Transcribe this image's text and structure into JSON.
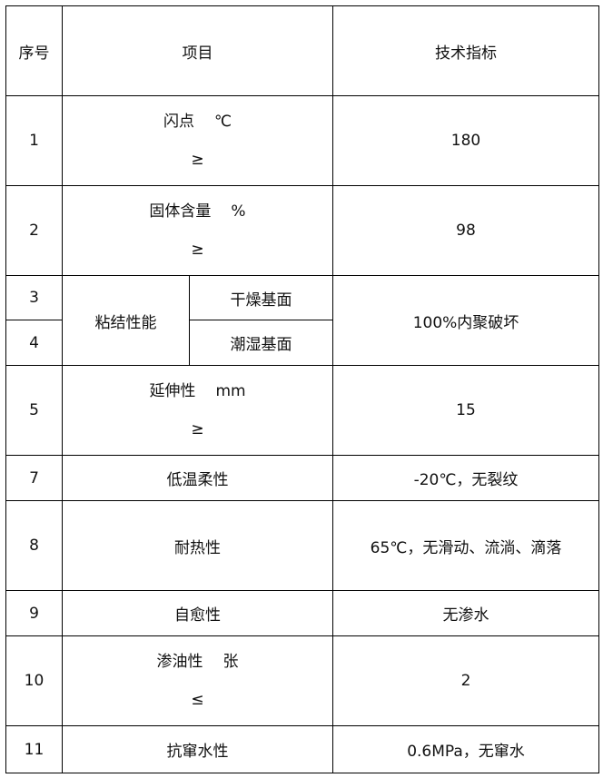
{
  "headers": [
    "序号",
    "项目",
    "技术指标"
  ],
  "rows": [
    {
      "no": "1",
      "item": "闪点",
      "unit": "℃",
      "cmp": "≥",
      "value": "180"
    },
    {
      "no": "2",
      "item": "固体含量",
      "unit": "%",
      "cmp": "≥",
      "value": "98"
    },
    {
      "no": "3",
      "group": "粘结性能",
      "sub": "干燥基面",
      "value": "100%内聚破坏"
    },
    {
      "no": "4",
      "sub": "潮湿基面"
    },
    {
      "no": "5",
      "item": "延伸性",
      "unit": "mm",
      "cmp": "≥",
      "value": "15"
    },
    {
      "no": "7",
      "item": "低温柔性",
      "value": "-20℃，无裂纹"
    },
    {
      "no": "8",
      "item": "耐热性",
      "value": "65℃，无滑动、流淌、滴落"
    },
    {
      "no": "9",
      "item": "自愈性",
      "value": "无渗水"
    },
    {
      "no": "10",
      "item": "渗油性",
      "unit": "张",
      "cmp": "≤",
      "value": "2"
    },
    {
      "no": "11",
      "item": "抗窜水性",
      "value": "0.6MPa，无窜水"
    }
  ]
}
